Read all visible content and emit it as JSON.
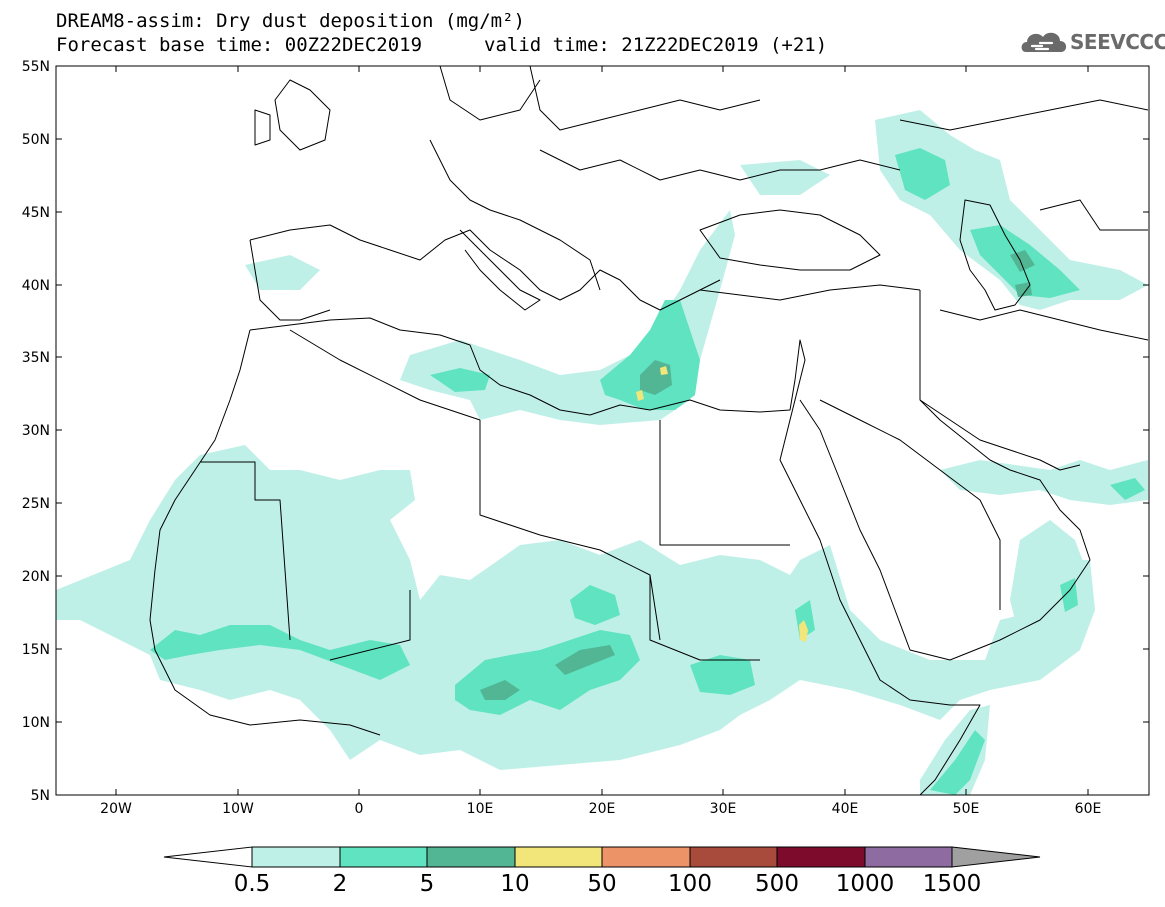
{
  "title": {
    "line1": "DREAM8-assim: Dry dust deposition (mg/m²)",
    "line2_left": "Forecast base time: 00Z22DEC2019",
    "line2_right": "valid time: 21Z22DEC2019 (+21)"
  },
  "logo": {
    "text": "SEEVCCC",
    "icon": "cloud-logo-icon"
  },
  "axes": {
    "lat_labels": [
      "55N",
      "50N",
      "45N",
      "40N",
      "35N",
      "30N",
      "25N",
      "20N",
      "15N",
      "10N",
      "5N"
    ],
    "lon_labels": [
      "20W",
      "10W",
      "0",
      "10E",
      "20E",
      "30E",
      "40E",
      "50E",
      "60E"
    ]
  },
  "colorbar": {
    "labels": [
      "0.5",
      "2",
      "5",
      "10",
      "50",
      "100",
      "500",
      "1000",
      "1500"
    ],
    "colors": [
      "#ffffff",
      "#bff0e8",
      "#5fe3c0",
      "#52b594",
      "#f2e67a",
      "#ec9468",
      "#a84a3c",
      "#7d0b2b",
      "#8e6ba0",
      "#a0a0a0"
    ]
  },
  "colors": {
    "coast": "#000000",
    "level1": "#bff0e8",
    "level2": "#5fe3c0",
    "level3": "#52b594",
    "level4": "#f2e67a"
  }
}
